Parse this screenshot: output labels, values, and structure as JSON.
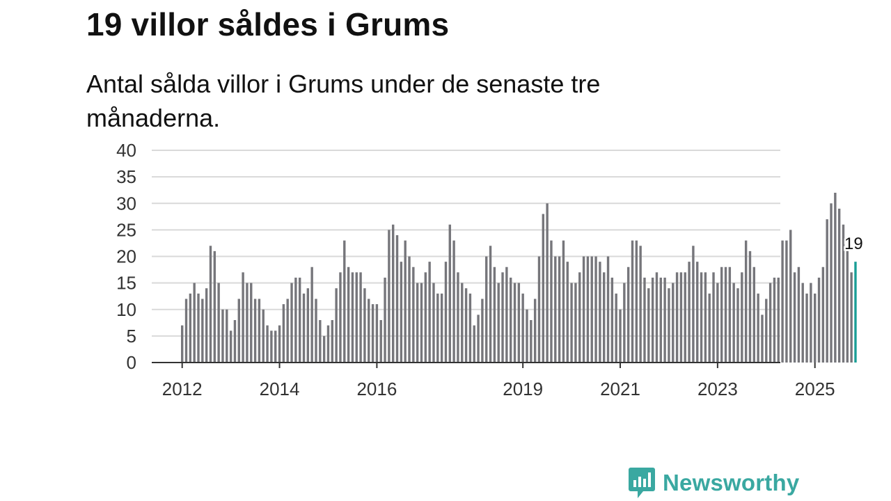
{
  "title": "19 villor såldes i Grums",
  "subtitle": "Antal sålda villor i Grums under de senaste tre månaderna.",
  "brand": {
    "name": "Newsworthy",
    "color": "#3aa8a1"
  },
  "chart_data": {
    "type": "bar",
    "x_start": "2012-01",
    "frequency": "monthly",
    "values": [
      7,
      12,
      13,
      15,
      13,
      12,
      14,
      22,
      21,
      15,
      10,
      10,
      6,
      8,
      12,
      17,
      15,
      15,
      12,
      12,
      10,
      7,
      6,
      6,
      7,
      11,
      12,
      15,
      16,
      16,
      13,
      14,
      18,
      12,
      8,
      5,
      7,
      8,
      14,
      17,
      23,
      18,
      17,
      17,
      17,
      14,
      12,
      11,
      11,
      8,
      16,
      25,
      26,
      24,
      19,
      23,
      20,
      18,
      15,
      15,
      17,
      19,
      15,
      13,
      13,
      19,
      26,
      23,
      17,
      15,
      14,
      13,
      7,
      9,
      12,
      20,
      22,
      18,
      15,
      17,
      18,
      16,
      15,
      15,
      13,
      10,
      8,
      12,
      20,
      28,
      30,
      23,
      20,
      20,
      23,
      19,
      15,
      15,
      17,
      20,
      20,
      20,
      20,
      19,
      17,
      20,
      16,
      13,
      10,
      15,
      18,
      23,
      23,
      22,
      16,
      14,
      16,
      17,
      16,
      16,
      14,
      15,
      17,
      17,
      17,
      19,
      22,
      19,
      17,
      17,
      13,
      17,
      15,
      18,
      18,
      18,
      15,
      14,
      17,
      23,
      21,
      18,
      13,
      9,
      12,
      15,
      16,
      16,
      23,
      23,
      25,
      17,
      18,
      15,
      13,
      15,
      13,
      16,
      18,
      27,
      30,
      32,
      29,
      26,
      21,
      17,
      19
    ],
    "highlight": {
      "value": 19,
      "label": "19",
      "color": "#1a9e96"
    },
    "bar_color": "#76767b",
    "ylim": [
      0,
      40
    ],
    "yticks": [
      0,
      5,
      10,
      15,
      20,
      25,
      30,
      35,
      40
    ],
    "xticks": [
      {
        "label": "2012",
        "index": 0
      },
      {
        "label": "2014",
        "index": 24
      },
      {
        "label": "2016",
        "index": 48
      },
      {
        "label": "2019",
        "index": 84
      },
      {
        "label": "2021",
        "index": 108
      },
      {
        "label": "2023",
        "index": 132
      },
      {
        "label": "2025",
        "index": 156
      }
    ],
    "grid": true,
    "xlabel": "",
    "ylabel": ""
  }
}
